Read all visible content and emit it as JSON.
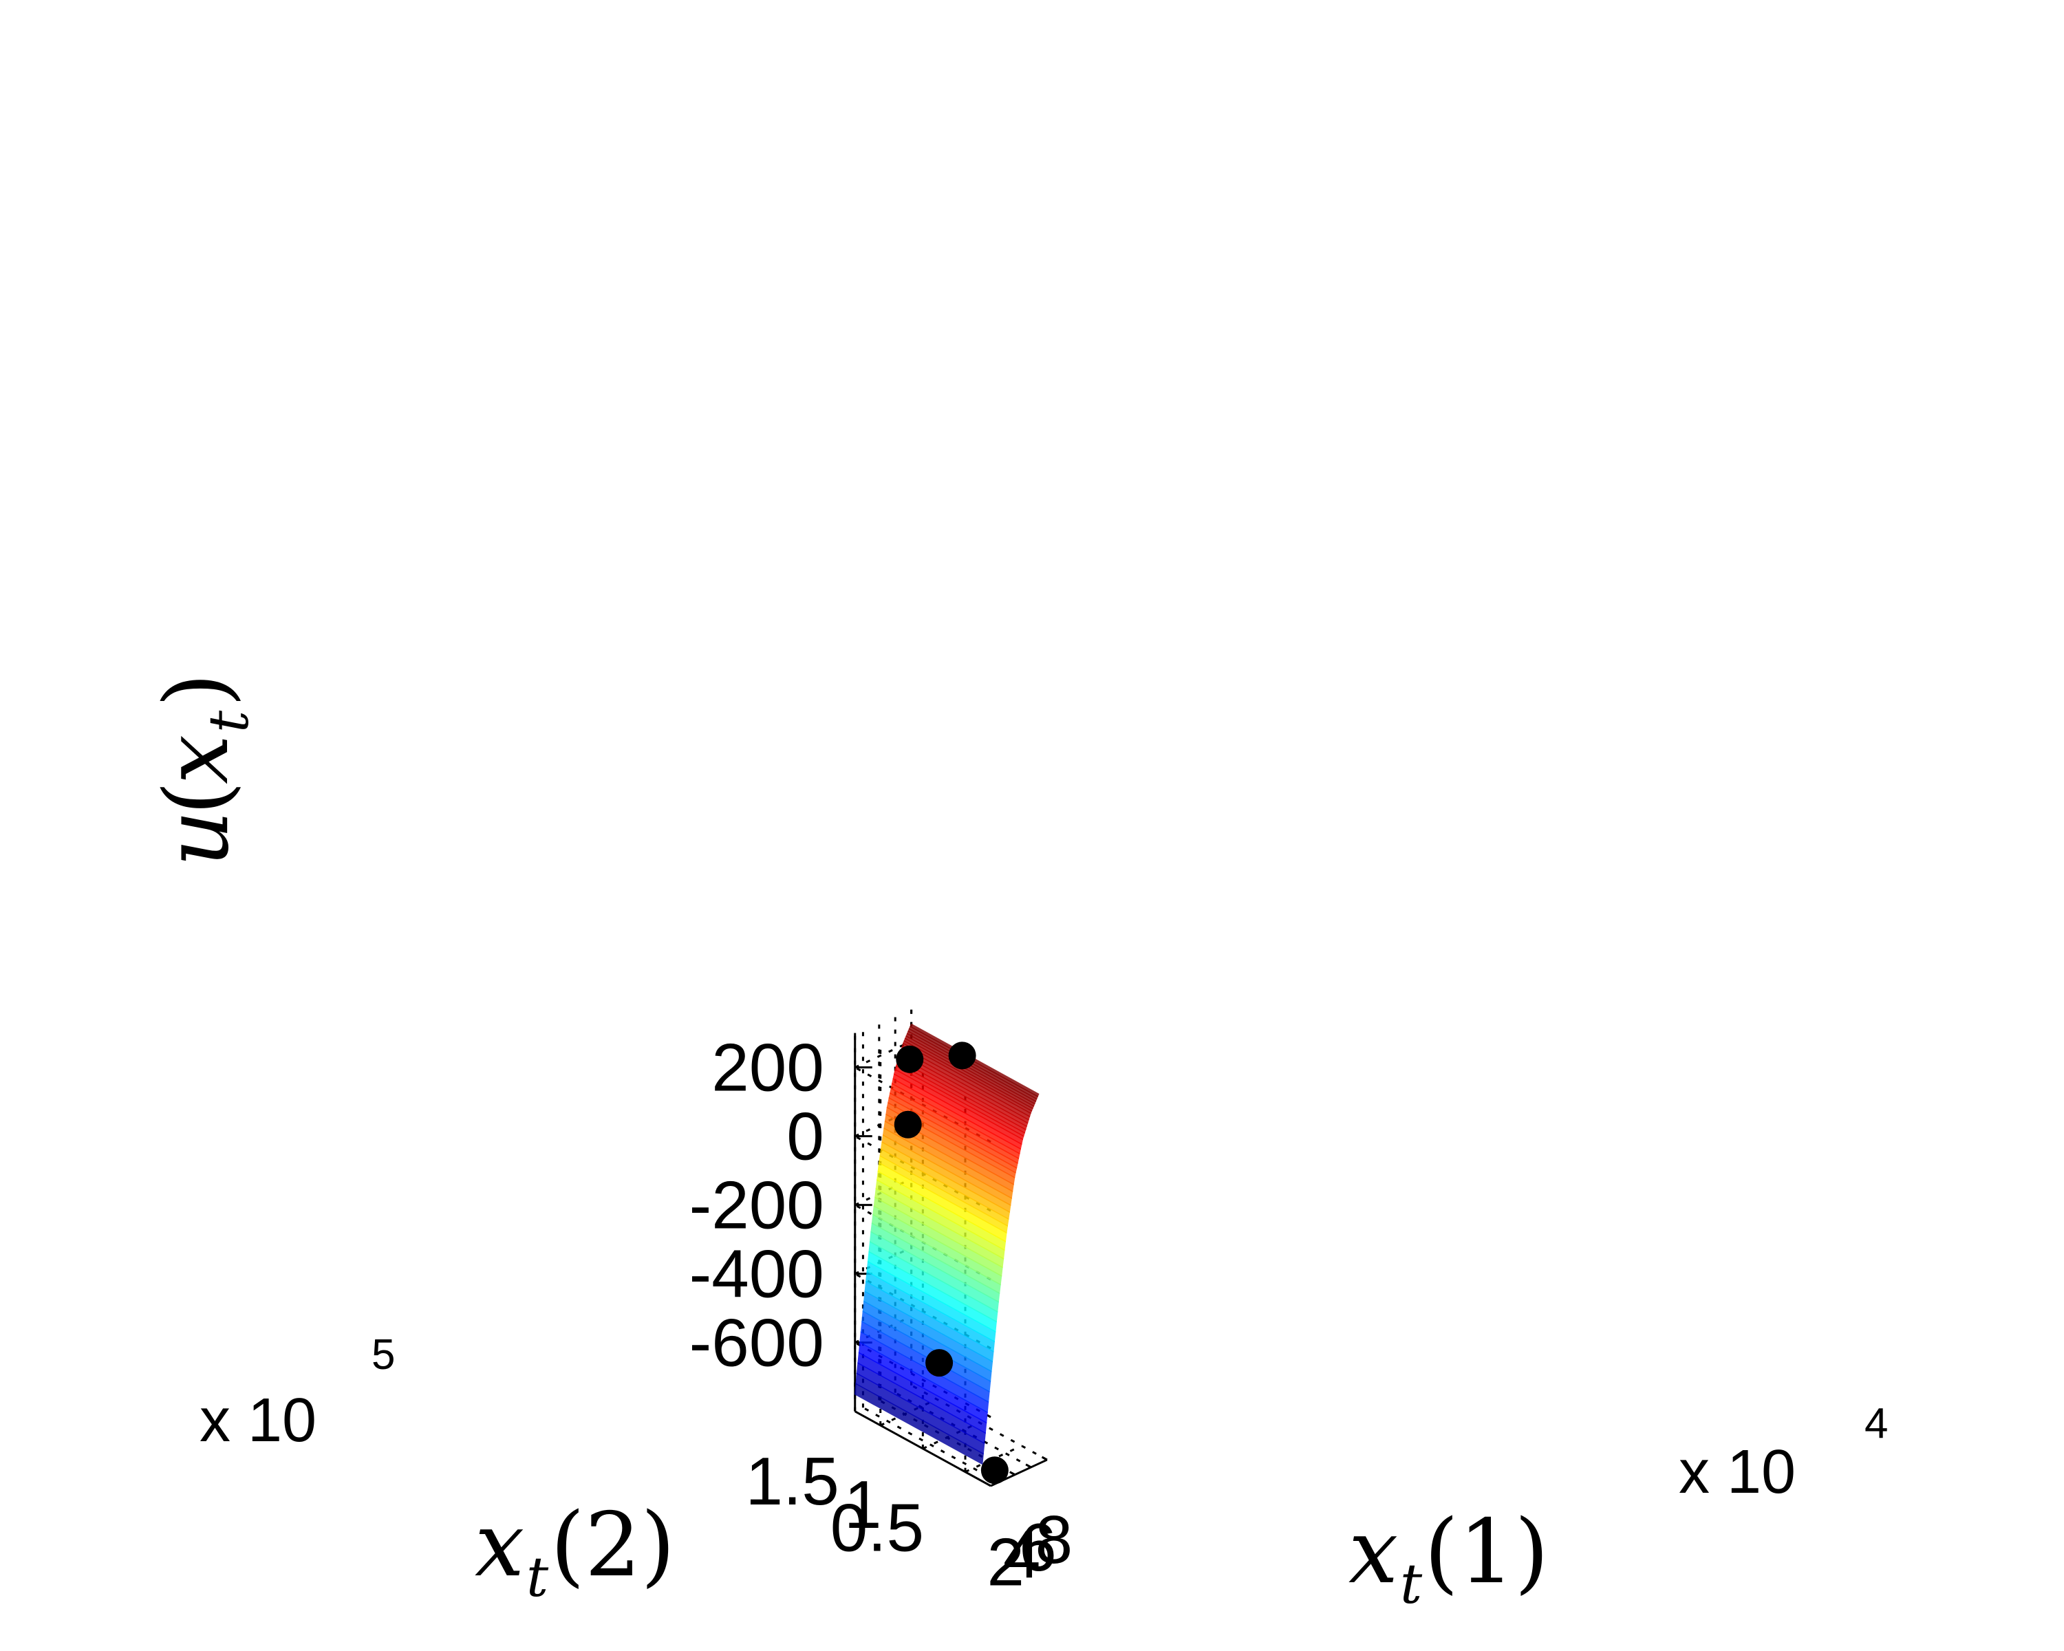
{
  "chart_data": {
    "type": "surface3d",
    "title": "",
    "xlabel": {
      "main": "x",
      "sub": "t",
      "arg": "(1)"
    },
    "ylabel": {
      "main": "x",
      "sub": "t",
      "arg": "(2)"
    },
    "zlabel": {
      "main": "u",
      "open": "(",
      "var": "x",
      "sub": "t",
      "close": ")"
    },
    "x_ticks": [
      "2",
      "4",
      "6",
      "8"
    ],
    "x_multiplier": {
      "prefix": "x 10",
      "exponent": "4"
    },
    "y_ticks": [
      "0.5",
      "1",
      "1.5"
    ],
    "y_multiplier": {
      "prefix": "x 10",
      "exponent": "5"
    },
    "z_ticks": [
      "200",
      "0",
      "-200",
      "-400",
      "-600"
    ],
    "xlim": [
      10000,
      80000
    ],
    "ylim": [
      20000,
      180000
    ],
    "zlim": [
      -800,
      300
    ],
    "grid": true,
    "colormap": "jet",
    "surface": {
      "x_range": [
        10000,
        80000
      ],
      "y_range": [
        30000,
        180000
      ],
      "z_at_x_profile": [
        {
          "x": 10000,
          "z": -750
        },
        {
          "x": 20000,
          "z": -520
        },
        {
          "x": 30000,
          "z": -300
        },
        {
          "x": 40000,
          "z": -110
        },
        {
          "x": 50000,
          "z": 40
        },
        {
          "x": 60000,
          "z": 140
        },
        {
          "x": 70000,
          "z": 205
        },
        {
          "x": 80000,
          "z": 250
        }
      ]
    },
    "highlight_color": "#000000",
    "highlighted_points": [
      {
        "x": 15000,
        "y": 20000,
        "z": -760
      },
      {
        "x": 25000,
        "y": 95000,
        "z": -560
      },
      {
        "x": 60000,
        "y": 165000,
        "z": 0
      },
      {
        "x": 78000,
        "y": 180000,
        "z": 150
      },
      {
        "x": 80000,
        "y": 120000,
        "z": 240
      }
    ]
  }
}
